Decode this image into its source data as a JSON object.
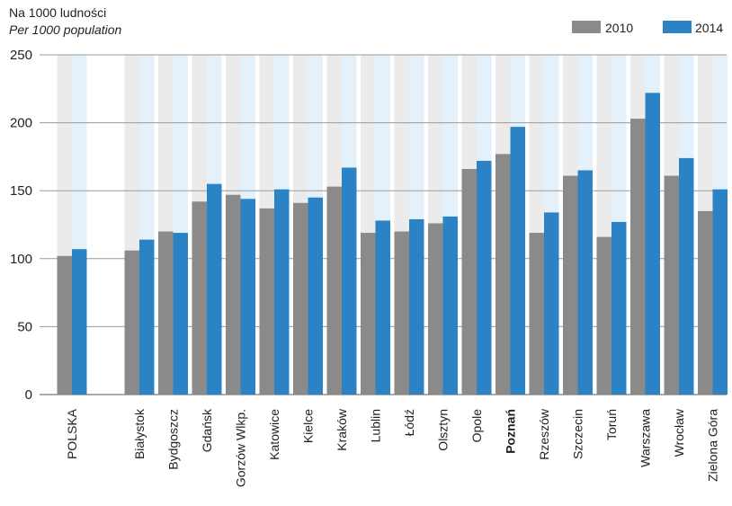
{
  "unit_label": {
    "pl": "Na 1000 ludności",
    "en": "Per 1000 population"
  },
  "colors": {
    "series_2010": "#8a8a8a",
    "series_2014": "#2b83c6",
    "band_2010": "#ebebeb",
    "band_2014": "#e4f1fb",
    "gridline": "#9a9a9a"
  },
  "chart_data": {
    "type": "bar",
    "title": "",
    "xlabel": "",
    "ylabel": "",
    "ylim": [
      0,
      250
    ],
    "yticks": [
      0,
      50,
      100,
      150,
      200,
      250
    ],
    "grid": true,
    "legend_position": "top-right",
    "categories": [
      "POLSKA",
      "Białystok",
      "Bydgoszcz",
      "Gdańsk",
      "Gorzów Wlkp.",
      "Katowice",
      "Kielce",
      "Kraków",
      "Lublin",
      "Łódź",
      "Olsztyn",
      "Opole",
      "Poznań",
      "Rzeszów",
      "Szczecin",
      "Toruń",
      "Warszawa",
      "Wrocław",
      "Zielona Góra"
    ],
    "bold_categories": [
      "Poznań"
    ],
    "series": [
      {
        "name": "2010",
        "values": [
          102,
          106,
          120,
          142,
          147,
          137,
          141,
          153,
          119,
          120,
          126,
          166,
          177,
          119,
          161,
          116,
          203,
          161,
          135
        ]
      },
      {
        "name": "2014",
        "values": [
          107,
          114,
          119,
          155,
          144,
          151,
          145,
          167,
          128,
          129,
          131,
          172,
          197,
          134,
          165,
          127,
          222,
          174,
          151
        ]
      }
    ]
  }
}
